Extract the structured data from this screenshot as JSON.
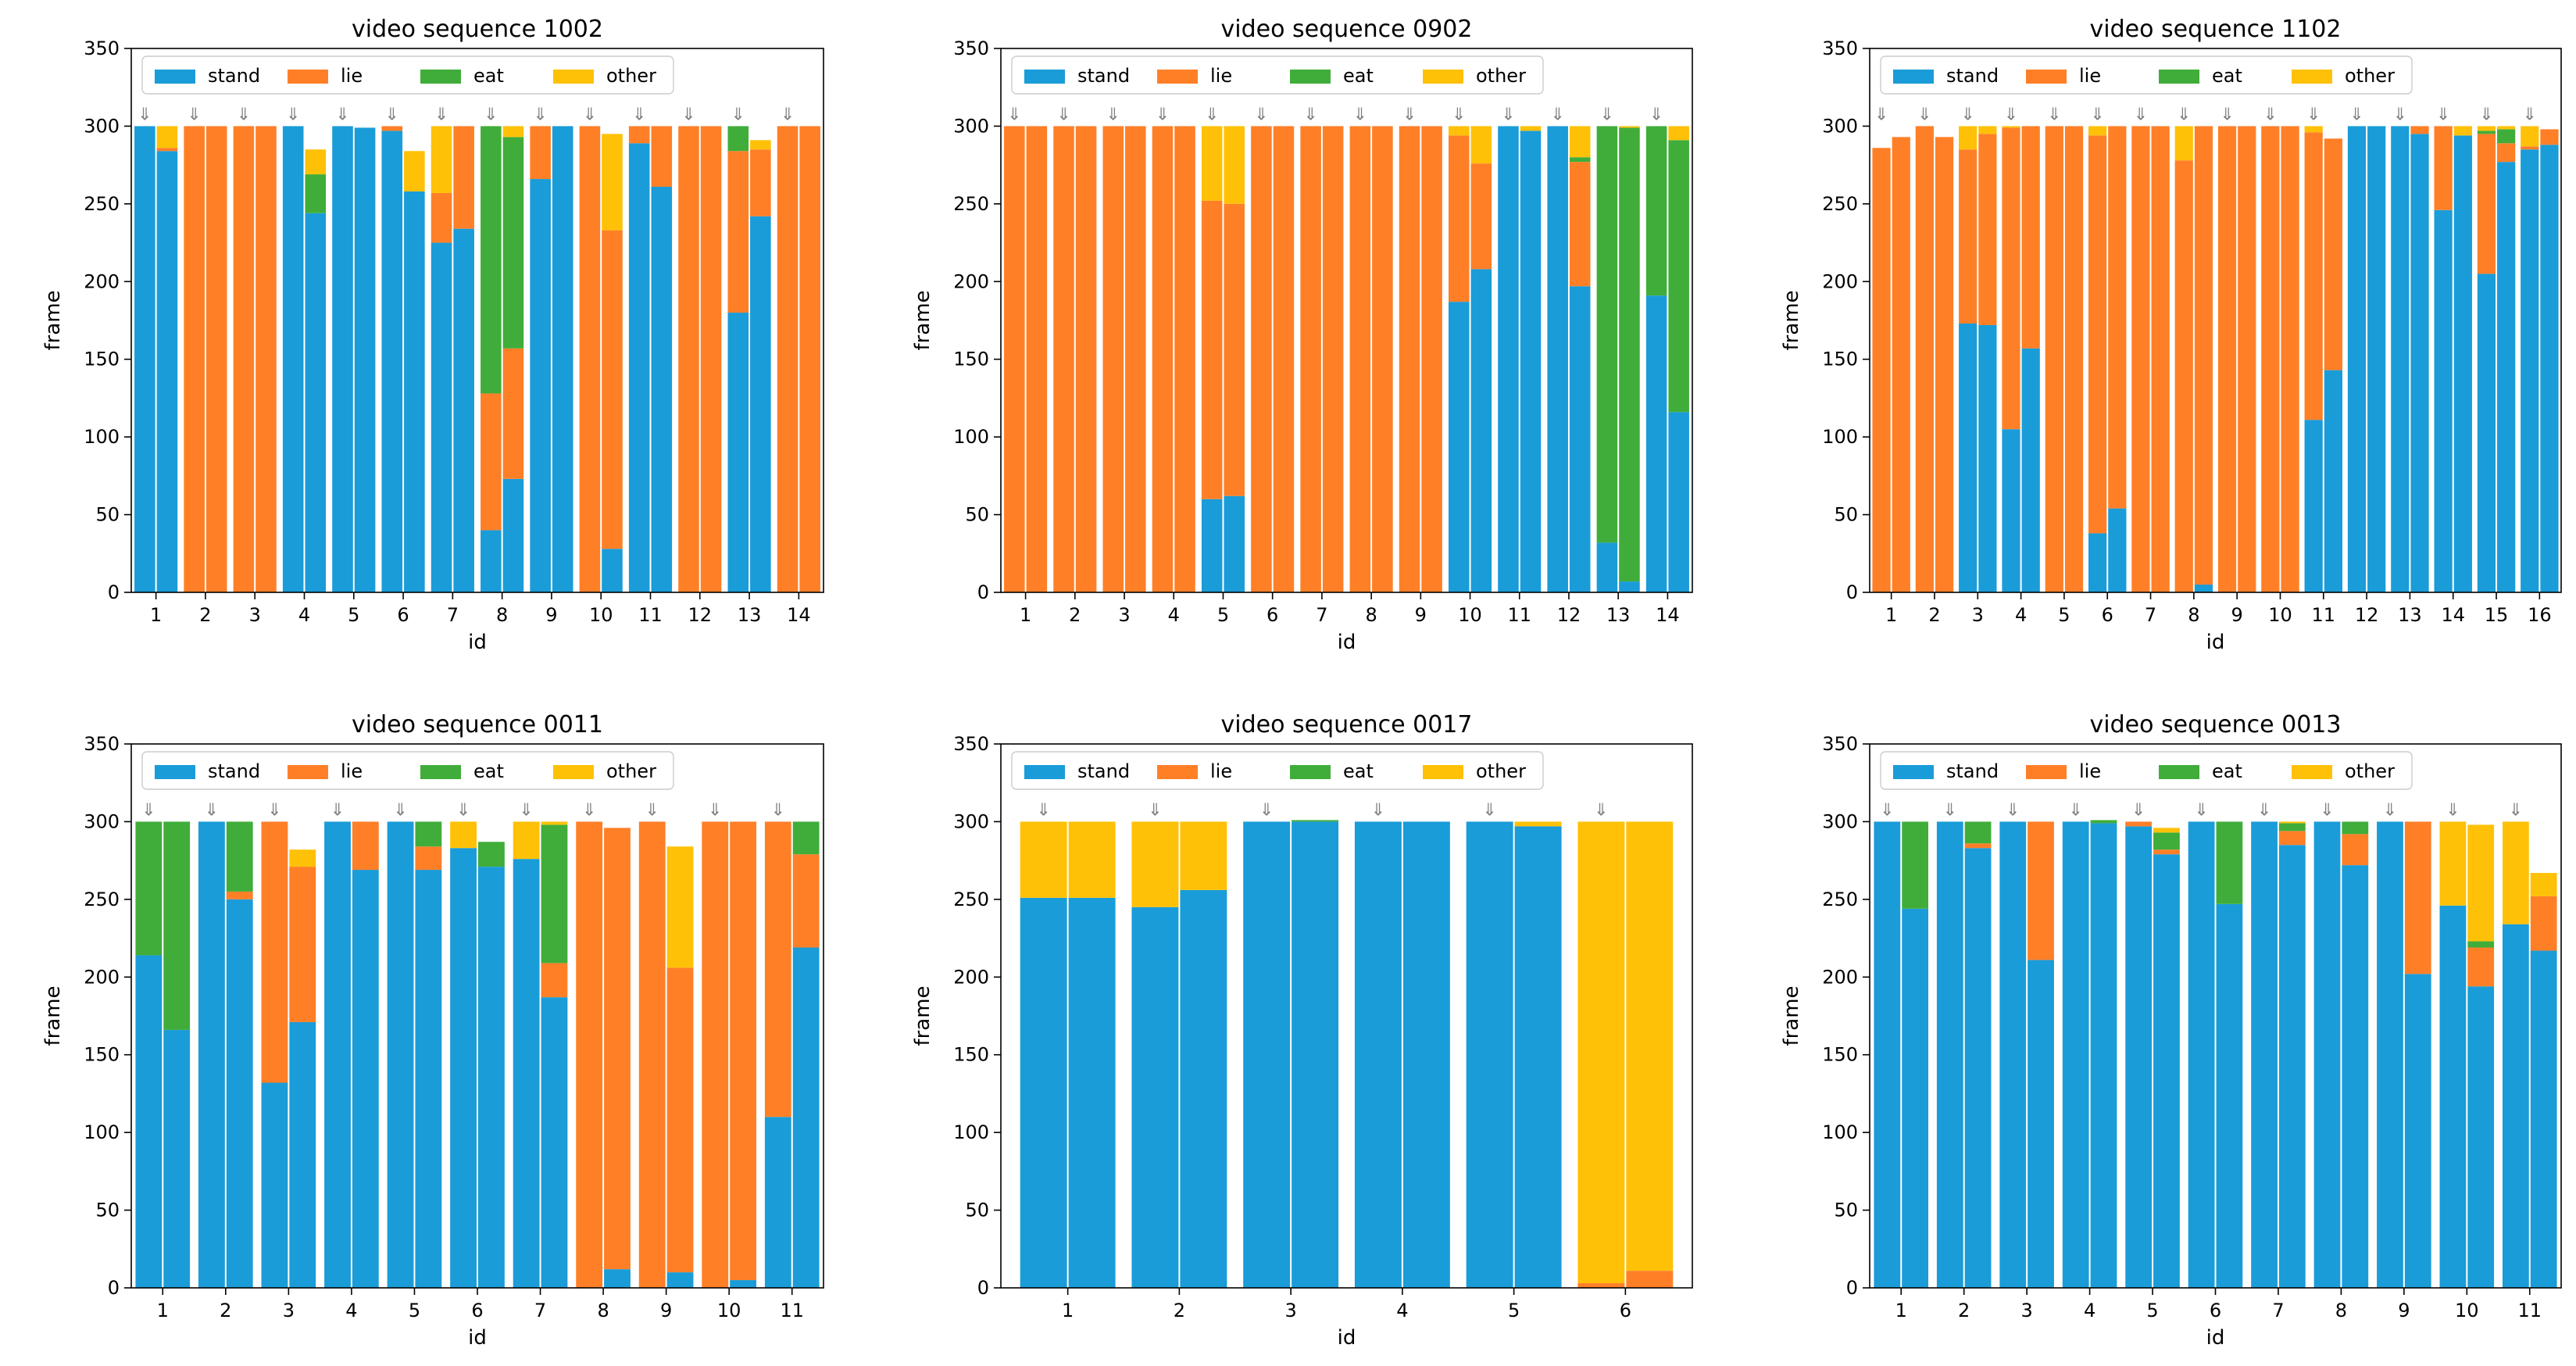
{
  "colors": {
    "stand": "#1A9CD8",
    "lie": "#FF7F27",
    "eat": "#40AD3A",
    "other": "#FFC107",
    "marker": "#808080"
  },
  "legend_labels": [
    "stand",
    "lie",
    "eat",
    "other"
  ],
  "legend_keys": [
    "stand",
    "lie",
    "eat",
    "other"
  ],
  "marker_glyph": "⇓",
  "chart_data": [
    {
      "type": "bar",
      "title": "video sequence 1002",
      "xlabel": "id",
      "ylabel": "frame",
      "ylim": [
        0,
        350
      ],
      "yticks": [
        0,
        50,
        100,
        150,
        200,
        250,
        300,
        350
      ],
      "ytick_labels": [
        "0",
        "50",
        "100",
        "150",
        "200",
        "250",
        "300",
        "350"
      ],
      "categories": [
        "1",
        "2",
        "3",
        "4",
        "5",
        "6",
        "7",
        "8",
        "9",
        "10",
        "11",
        "12",
        "13",
        "14"
      ],
      "legend_position": "top-left",
      "stack_order": [
        "stand",
        "lie",
        "eat",
        "other"
      ],
      "bars": [
        [
          [
            300,
            0,
            0,
            0
          ],
          [
            284,
            2,
            0,
            14
          ]
        ],
        [
          [
            0,
            300,
            0,
            0
          ],
          [
            0,
            300,
            0,
            0
          ]
        ],
        [
          [
            0,
            300,
            0,
            0
          ],
          [
            0,
            300,
            0,
            0
          ]
        ],
        [
          [
            300,
            0,
            0,
            0
          ],
          [
            244,
            0,
            25,
            16
          ]
        ],
        [
          [
            300,
            0,
            0,
            0
          ],
          [
            299,
            0,
            0,
            0
          ]
        ],
        [
          [
            297,
            3,
            0,
            0
          ],
          [
            258,
            0,
            0,
            26
          ]
        ],
        [
          [
            225,
            32,
            0,
            43
          ],
          [
            234,
            66,
            0,
            0
          ]
        ],
        [
          [
            40,
            88,
            172,
            0
          ],
          [
            73,
            84,
            136,
            7
          ]
        ],
        [
          [
            266,
            34,
            0,
            0
          ],
          [
            300,
            0,
            0,
            0
          ]
        ],
        [
          [
            0,
            300,
            0,
            0
          ],
          [
            28,
            205,
            0,
            62
          ]
        ],
        [
          [
            289,
            11,
            0,
            0
          ],
          [
            261,
            39,
            0,
            0
          ]
        ],
        [
          [
            0,
            300,
            0,
            0
          ],
          [
            0,
            300,
            0,
            0
          ]
        ],
        [
          [
            180,
            104,
            16,
            0
          ],
          [
            242,
            43,
            0,
            6
          ]
        ],
        [
          [
            0,
            300,
            0,
            0
          ],
          [
            0,
            300,
            0,
            0
          ]
        ]
      ]
    },
    {
      "type": "bar",
      "title": "video sequence 0902",
      "xlabel": "id",
      "ylabel": "frame",
      "ylim": [
        0,
        350
      ],
      "yticks": [
        0,
        50,
        100,
        150,
        200,
        250,
        300,
        350
      ],
      "ytick_labels": [
        "0",
        "50",
        "100",
        "150",
        "200",
        "250",
        "300",
        "350"
      ],
      "categories": [
        "1",
        "2",
        "3",
        "4",
        "5",
        "6",
        "7",
        "8",
        "9",
        "10",
        "11",
        "12",
        "13",
        "14"
      ],
      "legend_position": "top-left",
      "stack_order": [
        "stand",
        "lie",
        "eat",
        "other"
      ],
      "bars": [
        [
          [
            0,
            300,
            0,
            0
          ],
          [
            0,
            300,
            0,
            0
          ]
        ],
        [
          [
            0,
            300,
            0,
            0
          ],
          [
            0,
            300,
            0,
            0
          ]
        ],
        [
          [
            0,
            300,
            0,
            0
          ],
          [
            0,
            300,
            0,
            0
          ]
        ],
        [
          [
            0,
            300,
            0,
            0
          ],
          [
            0,
            300,
            0,
            0
          ]
        ],
        [
          [
            60,
            192,
            0,
            48
          ],
          [
            62,
            188,
            0,
            50
          ]
        ],
        [
          [
            0,
            300,
            0,
            0
          ],
          [
            0,
            300,
            0,
            0
          ]
        ],
        [
          [
            0,
            300,
            0,
            0
          ],
          [
            0,
            300,
            0,
            0
          ]
        ],
        [
          [
            0,
            300,
            0,
            0
          ],
          [
            0,
            300,
            0,
            0
          ]
        ],
        [
          [
            0,
            300,
            0,
            0
          ],
          [
            0,
            300,
            0,
            0
          ]
        ],
        [
          [
            187,
            107,
            0,
            6
          ],
          [
            208,
            68,
            0,
            24
          ]
        ],
        [
          [
            300,
            0,
            0,
            0
          ],
          [
            297,
            0,
            0,
            3
          ]
        ],
        [
          [
            300,
            0,
            0,
            0
          ],
          [
            197,
            80,
            3,
            20
          ]
        ],
        [
          [
            32,
            0,
            268,
            0
          ],
          [
            7,
            0,
            292,
            1
          ]
        ],
        [
          [
            191,
            0,
            109,
            0
          ],
          [
            116,
            0,
            175,
            9
          ]
        ]
      ]
    },
    {
      "type": "bar",
      "title": "video sequence 1102",
      "xlabel": "id",
      "ylabel": "frame",
      "ylim": [
        0,
        350
      ],
      "yticks": [
        0,
        50,
        100,
        150,
        200,
        250,
        300,
        350
      ],
      "ytick_labels": [
        "0",
        "50",
        "100",
        "150",
        "200",
        "250",
        "300",
        "350"
      ],
      "categories": [
        "1",
        "2",
        "3",
        "4",
        "5",
        "6",
        "7",
        "8",
        "9",
        "10",
        "11",
        "12",
        "13",
        "14",
        "15",
        "16"
      ],
      "legend_position": "top-left",
      "stack_order": [
        "stand",
        "lie",
        "eat",
        "other"
      ],
      "bars": [
        [
          [
            0,
            286,
            0,
            0
          ],
          [
            0,
            293,
            0,
            0
          ]
        ],
        [
          [
            0,
            300,
            0,
            0
          ],
          [
            0,
            293,
            0,
            0
          ]
        ],
        [
          [
            173,
            112,
            0,
            15
          ],
          [
            172,
            123,
            0,
            5
          ]
        ],
        [
          [
            105,
            194,
            0,
            1
          ],
          [
            157,
            143,
            0,
            0
          ]
        ],
        [
          [
            0,
            300,
            0,
            0
          ],
          [
            0,
            300,
            0,
            0
          ]
        ],
        [
          [
            38,
            256,
            0,
            6
          ],
          [
            54,
            246,
            0,
            0
          ]
        ],
        [
          [
            0,
            300,
            0,
            0
          ],
          [
            0,
            300,
            0,
            0
          ]
        ],
        [
          [
            0,
            278,
            0,
            22
          ],
          [
            5,
            295,
            0,
            0
          ]
        ],
        [
          [
            0,
            300,
            0,
            0
          ],
          [
            0,
            300,
            0,
            0
          ]
        ],
        [
          [
            0,
            300,
            0,
            0
          ],
          [
            0,
            300,
            0,
            0
          ]
        ],
        [
          [
            111,
            185,
            0,
            4
          ],
          [
            143,
            149,
            0,
            0
          ]
        ],
        [
          [
            300,
            0,
            0,
            0
          ],
          [
            300,
            0,
            0,
            0
          ]
        ],
        [
          [
            300,
            0,
            0,
            0
          ],
          [
            295,
            5,
            0,
            0
          ]
        ],
        [
          [
            246,
            54,
            0,
            0
          ],
          [
            294,
            0,
            0,
            6
          ]
        ],
        [
          [
            205,
            90,
            2,
            3
          ],
          [
            277,
            12,
            9,
            2
          ]
        ],
        [
          [
            285,
            2,
            0,
            13
          ],
          [
            288,
            10,
            0,
            0
          ]
        ]
      ]
    },
    {
      "type": "bar",
      "title": "video sequence 0011",
      "xlabel": "id",
      "ylabel": "frame",
      "ylim": [
        0,
        350
      ],
      "yticks": [
        0,
        50,
        100,
        150,
        200,
        250,
        300,
        350
      ],
      "ytick_labels": [
        "0",
        "50",
        "100",
        "150",
        "200",
        "250",
        "300",
        "350"
      ],
      "categories": [
        "1",
        "2",
        "3",
        "4",
        "5",
        "6",
        "7",
        "8",
        "9",
        "10",
        "11"
      ],
      "legend_position": "top-left",
      "stack_order": [
        "stand",
        "lie",
        "eat",
        "other"
      ],
      "bars": [
        [
          [
            214,
            0,
            86,
            0
          ],
          [
            166,
            0,
            134,
            0
          ]
        ],
        [
          [
            300,
            0,
            0,
            0
          ],
          [
            250,
            5,
            45,
            0
          ]
        ],
        [
          [
            132,
            168,
            0,
            0
          ],
          [
            171,
            100,
            0,
            11
          ]
        ],
        [
          [
            300,
            0,
            0,
            0
          ],
          [
            269,
            31,
            0,
            0
          ]
        ],
        [
          [
            300,
            0,
            0,
            0
          ],
          [
            269,
            15,
            16,
            0
          ]
        ],
        [
          [
            283,
            0,
            0,
            17
          ],
          [
            271,
            0,
            16,
            0
          ]
        ],
        [
          [
            276,
            0,
            0,
            24
          ],
          [
            187,
            22,
            89,
            2
          ]
        ],
        [
          [
            0,
            300,
            0,
            0
          ],
          [
            12,
            284,
            0,
            0
          ]
        ],
        [
          [
            0,
            300,
            0,
            0
          ],
          [
            10,
            196,
            0,
            78
          ]
        ],
        [
          [
            0,
            300,
            0,
            0
          ],
          [
            5,
            295,
            0,
            0
          ]
        ],
        [
          [
            110,
            190,
            0,
            0
          ],
          [
            219,
            60,
            21,
            0
          ]
        ]
      ]
    },
    {
      "type": "bar",
      "title": "video sequence 0017",
      "xlabel": "id",
      "ylabel": "frame",
      "ylim": [
        0,
        350
      ],
      "yticks": [
        0,
        50,
        100,
        150,
        200,
        250,
        300,
        350
      ],
      "ytick_labels": [
        "0",
        "50",
        "100",
        "150",
        "200",
        "250",
        "300",
        "350"
      ],
      "categories": [
        "1",
        "2",
        "3",
        "4",
        "5",
        "6"
      ],
      "legend_position": "top-left",
      "stack_order": [
        "stand",
        "lie",
        "eat",
        "other"
      ],
      "bars": [
        [
          [
            251,
            0,
            0,
            49
          ],
          [
            251,
            0,
            0,
            49
          ]
        ],
        [
          [
            245,
            0,
            0,
            55
          ],
          [
            256,
            0,
            0,
            44
          ]
        ],
        [
          [
            300,
            0,
            0,
            0
          ],
          [
            300,
            0,
            1,
            0
          ]
        ],
        [
          [
            300,
            0,
            0,
            0
          ],
          [
            300,
            0,
            0,
            0
          ]
        ],
        [
          [
            300,
            0,
            0,
            0
          ],
          [
            297,
            0,
            0,
            3
          ]
        ],
        [
          [
            0,
            3,
            0,
            297
          ],
          [
            0,
            11,
            0,
            289
          ]
        ]
      ]
    },
    {
      "type": "bar",
      "title": "video sequence 0013",
      "xlabel": "id",
      "ylabel": "frame",
      "ylim": [
        0,
        350
      ],
      "yticks": [
        0,
        50,
        100,
        150,
        200,
        250,
        300,
        350
      ],
      "ytick_labels": [
        "0",
        "50",
        "100",
        "150",
        "200",
        "250",
        "300",
        "350"
      ],
      "categories": [
        "1",
        "2",
        "3",
        "4",
        "5",
        "6",
        "7",
        "8",
        "9",
        "10",
        "11"
      ],
      "legend_position": "top-left",
      "stack_order": [
        "stand",
        "lie",
        "eat",
        "other"
      ],
      "bars": [
        [
          [
            300,
            0,
            0,
            0
          ],
          [
            244,
            0,
            56,
            0
          ]
        ],
        [
          [
            300,
            0,
            0,
            0
          ],
          [
            283,
            3,
            14,
            0
          ]
        ],
        [
          [
            300,
            0,
            0,
            0
          ],
          [
            211,
            89,
            0,
            0
          ]
        ],
        [
          [
            300,
            0,
            0,
            0
          ],
          [
            299,
            0,
            2,
            0
          ]
        ],
        [
          [
            297,
            3,
            0,
            0
          ],
          [
            279,
            3,
            11,
            3
          ]
        ],
        [
          [
            300,
            0,
            0,
            0
          ],
          [
            247,
            0,
            53,
            0
          ]
        ],
        [
          [
            300,
            0,
            0,
            0
          ],
          [
            285,
            9,
            5,
            1
          ]
        ],
        [
          [
            300,
            0,
            0,
            0
          ],
          [
            272,
            20,
            8,
            0
          ]
        ],
        [
          [
            300,
            0,
            0,
            0
          ],
          [
            202,
            98,
            0,
            0
          ]
        ],
        [
          [
            246,
            0,
            0,
            54
          ],
          [
            194,
            25,
            4,
            75
          ]
        ],
        [
          [
            234,
            0,
            0,
            66
          ],
          [
            217,
            35,
            0,
            15
          ]
        ]
      ]
    }
  ]
}
